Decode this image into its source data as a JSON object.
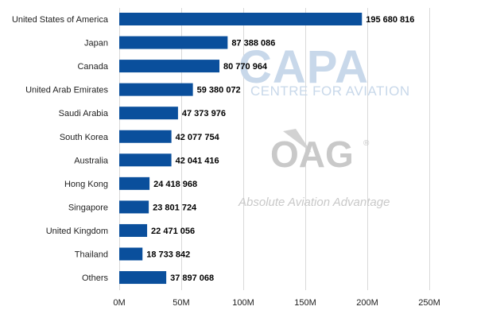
{
  "chart_data": {
    "type": "bar",
    "orientation": "horizontal",
    "categories": [
      "United States of America",
      "Japan",
      "Canada",
      "United Arab Emirates",
      "Saudi Arabia",
      "South Korea",
      "Australia",
      "Hong Kong",
      "Singapore",
      "United Kingdom",
      "Thailand",
      "Others"
    ],
    "values": [
      195680816,
      87388086,
      80770964,
      59380072,
      47373976,
      42077754,
      42041416,
      24418968,
      23801724,
      22471056,
      18733842,
      37897068
    ],
    "value_labels": [
      "195 680 816",
      "87 388 086",
      "80 770 964",
      "59 380 072",
      "47 373 976",
      "42 077 754",
      "42 041 416",
      "24 418 968",
      "23 801 724",
      "22 471 056",
      "18 733 842",
      "37 897 068"
    ],
    "xlim": [
      0,
      250000000
    ],
    "x_ticks": [
      0,
      50000000,
      100000000,
      150000000,
      200000000,
      250000000
    ],
    "x_tick_labels": [
      "0M",
      "50M",
      "100M",
      "150M",
      "200M",
      "250M"
    ],
    "title": "",
    "xlabel": "",
    "ylabel": "",
    "grid": "vertical",
    "legend": "none",
    "bar_color": "#0a4f9c"
  },
  "watermarks": {
    "capa_logo": "CAPA",
    "capa_subtitle": "CENTRE FOR AVIATION",
    "oag_logo": "OAG",
    "oag_registered": "®",
    "oag_tagline": "Absolute Aviation Advantage"
  }
}
